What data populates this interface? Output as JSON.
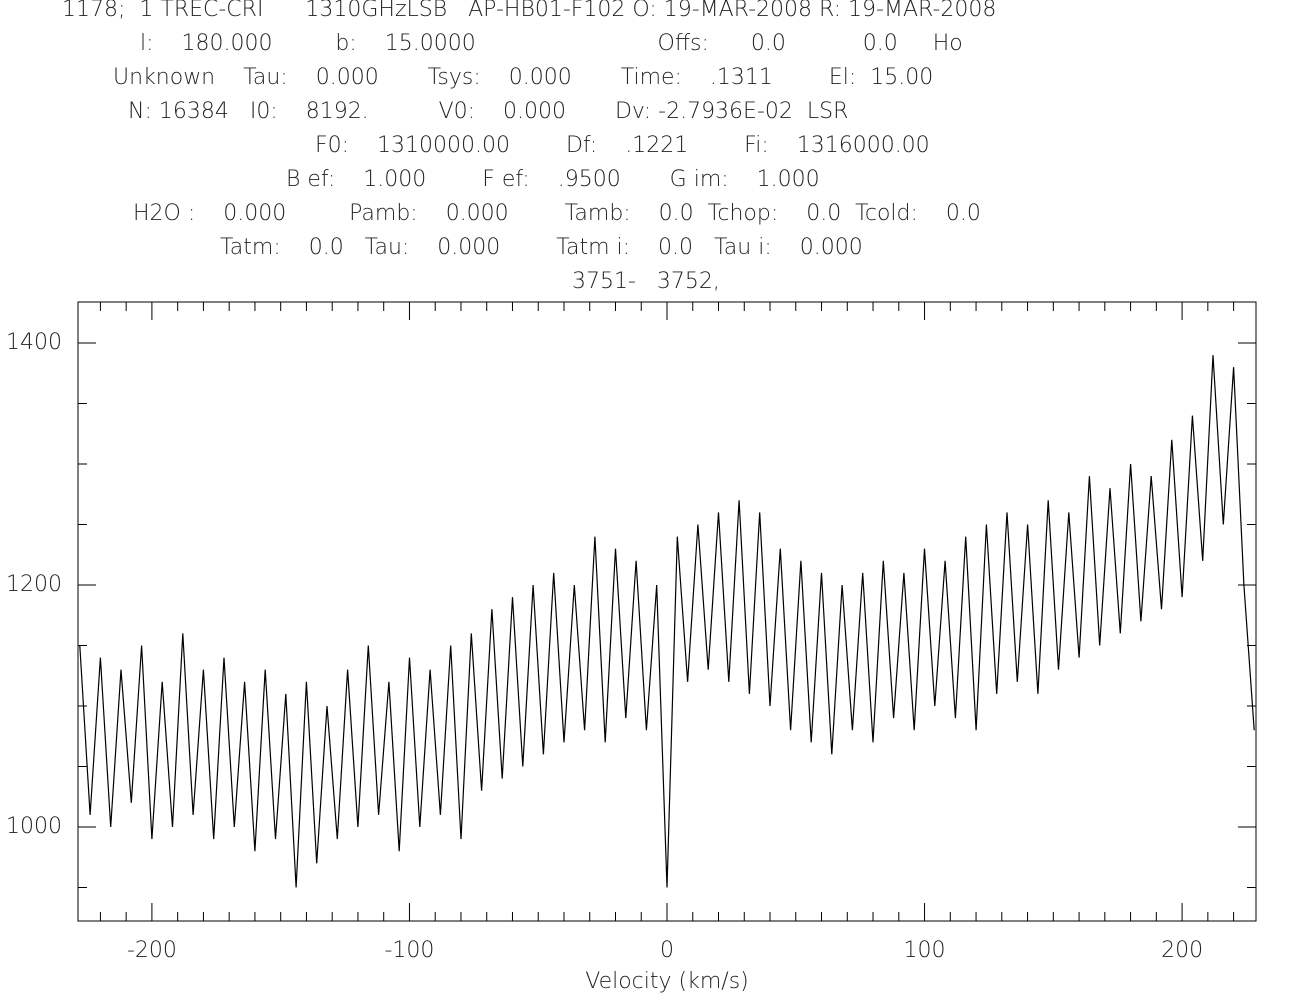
{
  "chart_data": {
    "type": "line",
    "header": [
      "1178;  1 TREC-CRI      1310GHzLSB   AP-HB01-F102 O: 19-MAR-2008 R: 19-MAR-2008",
      "l:    180.000         b:    15.0000                          Offs:      0.0           0.0     Ho",
      "Unknown    Tau:    0.000       Tsys:    0.000       Time:    .1311        El:  15.00",
      "N: 16384   I0:    8192.          V0:    0.000       Dv: -2.7936E-02  LSR",
      "F0:    1310000.00        Df:    .1221        Fi:    1316000.00",
      "B ef:    1.000        F ef:    .9500       G im:    1.000",
      "H2O :    0.000         Pamb:    0.000        Tamb:    0.0  Tchop:    0.0  Tcold:    0.0",
      "Tatm:    0.0   Tau:    0.000        Tatm i:    0.0   Tau i:    0.000",
      "3751-   3752,"
    ],
    "x_label": "Velocity (km/s)",
    "xlim": [
      -228.7,
      228.7
    ],
    "ylim": [
      922.3,
      1433.9
    ],
    "xticks": [
      -200,
      -100,
      0,
      100,
      200
    ],
    "yticks": [
      1000,
      1200,
      1400
    ],
    "xminorticks": [
      -220,
      -210,
      -190,
      -180,
      -170,
      -160,
      -150,
      -140,
      -130,
      -120,
      -110,
      -90,
      -80,
      -70,
      -60,
      -50,
      -40,
      -30,
      -20,
      -10,
      10,
      20,
      30,
      40,
      50,
      60,
      70,
      80,
      90,
      110,
      120,
      130,
      140,
      150,
      160,
      170,
      180,
      190,
      210,
      220
    ],
    "yminorticks": [
      950,
      1050,
      1100,
      1150,
      1250,
      1300,
      1350
    ],
    "color": "#000000",
    "x": [
      -228,
      -224,
      -220,
      -216,
      -212,
      -208,
      -204,
      -200,
      -196,
      -192,
      -188,
      -184,
      -180,
      -176,
      -172,
      -168,
      -164,
      -160,
      -156,
      -152,
      -148,
      -144,
      -140,
      -136,
      -132,
      -128,
      -124,
      -120,
      -116,
      -112,
      -108,
      -104,
      -100,
      -96,
      -92,
      -88,
      -84,
      -80,
      -76,
      -72,
      -68,
      -64,
      -60,
      -56,
      -52,
      -48,
      -44,
      -40,
      -36,
      -32,
      -28,
      -24,
      -20,
      -16,
      -12,
      -8,
      -4,
      0,
      4,
      8,
      12,
      16,
      20,
      24,
      28,
      32,
      36,
      40,
      44,
      48,
      52,
      56,
      60,
      64,
      68,
      72,
      76,
      80,
      84,
      88,
      92,
      96,
      100,
      104,
      108,
      112,
      116,
      120,
      124,
      128,
      132,
      136,
      140,
      144,
      148,
      152,
      156,
      160,
      164,
      168,
      172,
      176,
      180,
      184,
      188,
      192,
      196,
      200,
      204,
      208,
      212,
      216,
      220,
      224,
      228
    ],
    "values": [
      1150,
      1010,
      1140,
      1000,
      1130,
      1020,
      1150,
      990,
      1120,
      1000,
      1160,
      1010,
      1130,
      990,
      1140,
      1000,
      1120,
      980,
      1130,
      990,
      1110,
      950,
      1120,
      970,
      1100,
      990,
      1130,
      1000,
      1150,
      1010,
      1120,
      980,
      1140,
      1000,
      1130,
      1010,
      1150,
      990,
      1160,
      1030,
      1180,
      1040,
      1190,
      1050,
      1200,
      1060,
      1210,
      1070,
      1200,
      1080,
      1240,
      1070,
      1230,
      1090,
      1220,
      1080,
      1200,
      950,
      1240,
      1120,
      1250,
      1130,
      1260,
      1120,
      1270,
      1110,
      1260,
      1100,
      1230,
      1080,
      1220,
      1070,
      1210,
      1060,
      1200,
      1080,
      1210,
      1070,
      1220,
      1090,
      1210,
      1080,
      1230,
      1100,
      1220,
      1090,
      1240,
      1080,
      1250,
      1110,
      1260,
      1120,
      1250,
      1110,
      1270,
      1130,
      1260,
      1140,
      1290,
      1150,
      1280,
      1160,
      1300,
      1170,
      1290,
      1180,
      1320,
      1190,
      1340,
      1220,
      1390,
      1250,
      1380,
      1200,
      1080
    ]
  }
}
